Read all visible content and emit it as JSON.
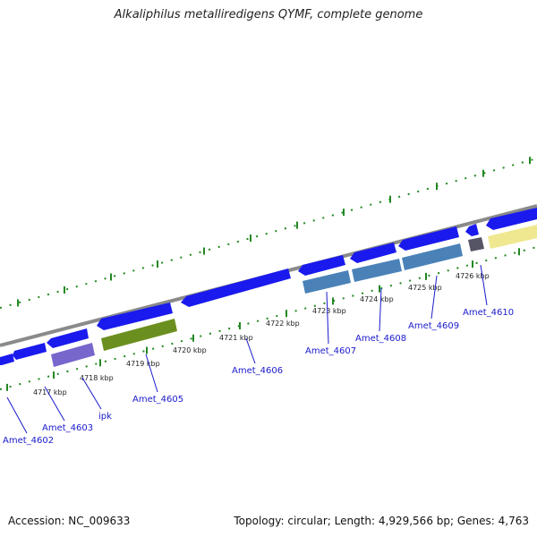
{
  "title": "Alkaliphilus metalliredigens QYMF, complete genome",
  "footer": {
    "accession": "Accession: NC_009633",
    "topology": "Topology: circular; Length: 4,929,566 bp; Genes: 4,763"
  },
  "colors": {
    "gene_blue": "#1a1aee",
    "steel_blue": "#4a82b8",
    "purple": "#7766cc",
    "olive": "#6b8f1f",
    "grey_block": "#555566",
    "pale_yellow": "#f0e890",
    "backbone": "#808080",
    "tick_green": "#228822",
    "label_blue": "#1a1acc"
  },
  "map": {
    "kbp_ticks": [
      {
        "label": "4717 kbp",
        "kbp": 4717
      },
      {
        "label": "4718 kbp",
        "kbp": 4718
      },
      {
        "label": "4719 kbp",
        "kbp": 4719
      },
      {
        "label": "4720 kbp",
        "kbp": 4720
      },
      {
        "label": "4721 kbp",
        "kbp": 4721
      },
      {
        "label": "4722 kbp",
        "kbp": 4722
      },
      {
        "label": "4723 kbp",
        "kbp": 4723
      },
      {
        "label": "4724 kbp",
        "kbp": 4724
      },
      {
        "label": "4725 kbp",
        "kbp": 4725
      },
      {
        "label": "4726 kbp",
        "kbp": 4726
      }
    ],
    "gene_labels": [
      "Amet_4602",
      "Amet_4603",
      "ipk",
      "Amet_4605",
      "Amet_4606",
      "Amet_4607",
      "Amet_4608",
      "Amet_4609",
      "Amet_4610"
    ]
  }
}
